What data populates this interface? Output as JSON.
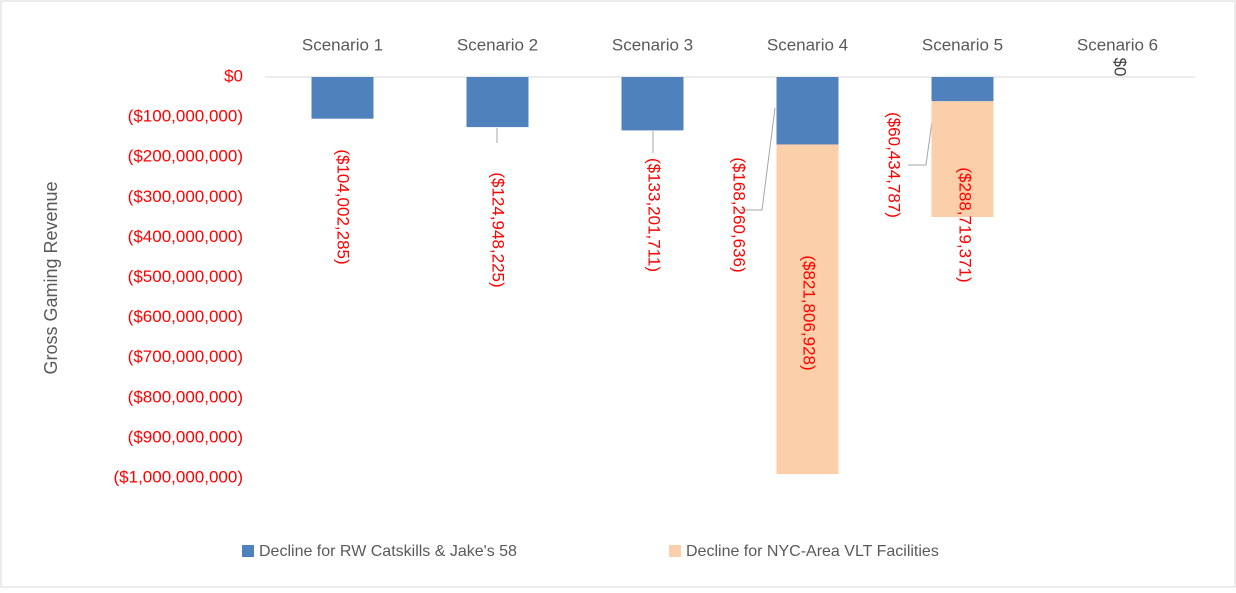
{
  "chart_data": {
    "type": "bar",
    "stacked": true,
    "categories": [
      "Scenario 1",
      "Scenario 2",
      "Scenario 3",
      "Scenario 4",
      "Scenario 5",
      "Scenario 6"
    ],
    "series": [
      {
        "name": "Decline for RW Catskills & Jake's 58",
        "color": "#4f81bd",
        "values": [
          -104002285,
          -124948225,
          -133201711,
          -168260636,
          -60434787,
          0
        ],
        "value_labels": [
          "($104,002,285)",
          "($124,948,225)",
          "($133,201,711)",
          "($168,260,636)",
          "($60,434,787)",
          "$0"
        ]
      },
      {
        "name": "Decline for NYC-Area VLT Facilities",
        "color": "#fbcfa9",
        "values": [
          null,
          null,
          null,
          -821806928,
          -288719371,
          null
        ],
        "value_labels": [
          null,
          null,
          null,
          "($821,806,928)",
          "($288,719,371)",
          null
        ]
      }
    ],
    "ylabel": "Gross Gaming Revenue",
    "ylim": [
      -1000000000,
      0
    ],
    "yticks": [
      {
        "value": 0,
        "label": "$0"
      },
      {
        "value": -100000000,
        "label": "($100,000,000)"
      },
      {
        "value": -200000000,
        "label": "($200,000,000)"
      },
      {
        "value": -300000000,
        "label": "($300,000,000)"
      },
      {
        "value": -400000000,
        "label": "($400,000,000)"
      },
      {
        "value": -500000000,
        "label": "($500,000,000)"
      },
      {
        "value": -600000000,
        "label": "($600,000,000)"
      },
      {
        "value": -700000000,
        "label": "($700,000,000)"
      },
      {
        "value": -800000000,
        "label": "($800,000,000)"
      },
      {
        "value": -900000000,
        "label": "($900,000,000)"
      },
      {
        "value": -1000000000,
        "label": "($1,000,000,000)"
      }
    ],
    "legend": "bottom"
  }
}
